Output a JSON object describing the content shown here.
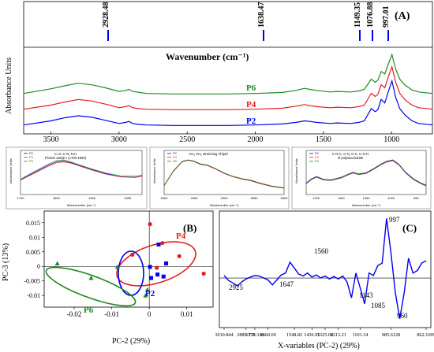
{
  "colors": {
    "blue": "#0000ee",
    "red": "#e51d1d",
    "green": "#1f8a1f",
    "black": "#000000"
  },
  "panel_a": {
    "label": "(A)",
    "ylabel": "Absorbance Units",
    "xlabel": "Wavenumber (cm⁻¹)",
    "xticks": [
      "3500",
      "3000",
      "2500",
      "2000",
      "1500",
      "1000"
    ],
    "peaks": [
      "2928.48",
      "1638.47",
      "1149.35",
      "1076.88",
      "997.01"
    ],
    "series": [
      {
        "name": "P6",
        "color": "#1f8a1f"
      },
      {
        "name": "P4",
        "color": "#e51d1d"
      },
      {
        "name": "P2",
        "color": "#0000ee"
      }
    ]
  },
  "insets": [
    {
      "title": "C=O, C-N, N-H",
      "subtitle": "Protein amide I (1700-1600)",
      "ylabel": "Absorbance Units",
      "xlabel": "Wavenumber (cm⁻¹)",
      "xticks": [
        "1700",
        "1650",
        "1600",
        "1550"
      ],
      "legend": [
        "P2",
        "P4",
        "P6"
      ]
    },
    {
      "title": "CH₂ CH₃ stretching of lipid",
      "ylabel": "Absorbance Units",
      "xlabel": "Wavenumber (cm⁻¹)",
      "xticks": [
        "3000",
        "2950",
        "2900",
        "2850",
        "2800"
      ],
      "legend": [
        "P2",
        "P4",
        "P6"
      ]
    },
    {
      "title": "C-O-C, C-O, C-C, C-O-H",
      "subtitle": "of polysaccharide",
      "ylabel": "Absorbance Units",
      "xlabel": "Wavenumber (cm⁻¹)",
      "xticks": [
        "1150",
        "1100",
        "1050",
        "1000",
        "950"
      ],
      "legend": [
        "P2",
        "P4",
        "P6"
      ]
    }
  ],
  "panel_b": {
    "label": "(B)",
    "xlabel": "PC-2 (29%)",
    "ylabel": "PC-3 (13%)",
    "xticks": [
      "-0.02",
      "-0.01",
      "0",
      "0.01"
    ],
    "yticks": [
      "0.015",
      "0.01",
      "0.005",
      "0",
      "-0.005",
      "-0.01"
    ],
    "groups": [
      "P4",
      "P2",
      "P6"
    ]
  },
  "panel_c": {
    "label": "(C)",
    "xlabel": "X-variables (PC-2) (29%)",
    "xticks": [
      "3010.844",
      "2889.331",
      "1778.346",
      "1660.69",
      "1548.82",
      "1436.95",
      "1325.08",
      "1213.21",
      "1101.34",
      "985.6128",
      "862.1699"
    ],
    "annotations": [
      "2925",
      "1647",
      "1560",
      "1143",
      "1085",
      "997",
      "960"
    ]
  },
  "chart_data": [
    {
      "type": "line",
      "title": "(A)",
      "xlabel": "Wavenumber (cm⁻¹)",
      "ylabel": "Absorbance Units",
      "xlim": [
        3700,
        700
      ],
      "x": [
        3700,
        3500,
        3400,
        3300,
        3200,
        3100,
        3000,
        2950,
        2928,
        2900,
        2850,
        2800,
        2600,
        2400,
        2200,
        2000,
        1800,
        1700,
        1638,
        1600,
        1550,
        1450,
        1400,
        1300,
        1240,
        1200,
        1149,
        1120,
        1100,
        1076,
        1050,
        1020,
        997,
        970,
        940,
        900,
        850,
        800,
        700
      ],
      "series": [
        {
          "name": "P6",
          "values": [
            0.02,
            0.11,
            0.17,
            0.22,
            0.19,
            0.13,
            0.06,
            0.08,
            0.1,
            0.06,
            0.04,
            0.02,
            0.01,
            0.01,
            0.01,
            0.02,
            0.04,
            0.08,
            0.12,
            0.1,
            0.08,
            0.05,
            0.06,
            0.05,
            0.07,
            0.1,
            0.3,
            0.24,
            0.28,
            0.45,
            0.4,
            0.62,
            0.78,
            0.5,
            0.3,
            0.18,
            0.09,
            0.05,
            0.02
          ]
        },
        {
          "name": "P4",
          "values": [
            0.02,
            0.1,
            0.16,
            0.21,
            0.18,
            0.12,
            0.05,
            0.07,
            0.09,
            0.05,
            0.03,
            0.02,
            0.01,
            0.01,
            0.01,
            0.02,
            0.04,
            0.08,
            0.11,
            0.09,
            0.07,
            0.05,
            0.06,
            0.05,
            0.07,
            0.1,
            0.33,
            0.27,
            0.31,
            0.5,
            0.44,
            0.68,
            0.85,
            0.55,
            0.33,
            0.2,
            0.1,
            0.05,
            0.02
          ]
        },
        {
          "name": "P2",
          "values": [
            0.02,
            0.1,
            0.16,
            0.2,
            0.17,
            0.11,
            0.05,
            0.07,
            0.09,
            0.05,
            0.03,
            0.02,
            0.01,
            0.01,
            0.01,
            0.02,
            0.04,
            0.07,
            0.1,
            0.09,
            0.07,
            0.05,
            0.06,
            0.05,
            0.07,
            0.1,
            0.34,
            0.28,
            0.32,
            0.52,
            0.45,
            0.7,
            0.88,
            0.56,
            0.34,
            0.21,
            0.1,
            0.05,
            0.02
          ]
        }
      ]
    },
    {
      "type": "line",
      "title": "C=O, C-N, N-H",
      "xlabel": "Wavenumber (cm⁻¹)",
      "ylabel": "Absorbance Units",
      "xlim": [
        1700,
        1530
      ],
      "x": [
        1700,
        1680,
        1660,
        1650,
        1640,
        1630,
        1620,
        1600,
        1580,
        1560,
        1540,
        1530
      ],
      "series": [
        {
          "name": "P2",
          "values": [
            0.04,
            0.065,
            0.09,
            0.1,
            0.103,
            0.098,
            0.09,
            0.074,
            0.06,
            0.05,
            0.048,
            0.052
          ]
        },
        {
          "name": "P4",
          "values": [
            0.038,
            0.062,
            0.087,
            0.097,
            0.1,
            0.096,
            0.088,
            0.072,
            0.058,
            0.049,
            0.047,
            0.051
          ]
        },
        {
          "name": "P6",
          "values": [
            0.041,
            0.068,
            0.094,
            0.104,
            0.107,
            0.101,
            0.092,
            0.076,
            0.062,
            0.053,
            0.051,
            0.055
          ]
        }
      ]
    },
    {
      "type": "line",
      "title": "CH₂ CH₃ stretching of lipid",
      "xlabel": "Wavenumber (cm⁻¹)",
      "ylabel": "Absorbance Units",
      "xlim": [
        3000,
        2800
      ],
      "x": [
        3000,
        2985,
        2970,
        2960,
        2950,
        2940,
        2928,
        2915,
        2900,
        2885,
        2870,
        2855,
        2840,
        2820,
        2800
      ],
      "series": [
        {
          "name": "P2",
          "values": [
            0.02,
            0.07,
            0.105,
            0.11,
            0.106,
            0.096,
            0.092,
            0.08,
            0.064,
            0.052,
            0.044,
            0.038,
            0.028,
            0.018,
            0.012
          ]
        },
        {
          "name": "P4",
          "values": [
            0.019,
            0.069,
            0.104,
            0.109,
            0.105,
            0.095,
            0.091,
            0.079,
            0.063,
            0.051,
            0.043,
            0.037,
            0.027,
            0.017,
            0.011
          ]
        },
        {
          "name": "P6",
          "values": [
            0.021,
            0.071,
            0.106,
            0.111,
            0.107,
            0.097,
            0.093,
            0.081,
            0.065,
            0.053,
            0.045,
            0.039,
            0.029,
            0.019,
            0.013
          ]
        }
      ]
    },
    {
      "type": "line",
      "title": "C-O-C, C-O, C-C, C-O-H",
      "xlabel": "Wavenumber (cm⁻¹)",
      "ylabel": "Absorbance Units",
      "xlim": [
        1170,
        930
      ],
      "x": [
        1170,
        1160,
        1149,
        1135,
        1120,
        1100,
        1085,
        1076,
        1065,
        1050,
        1035,
        1020,
        1010,
        997,
        985,
        970,
        955,
        940,
        930
      ],
      "series": [
        {
          "name": "P2",
          "values": [
            0.2,
            0.3,
            0.36,
            0.29,
            0.28,
            0.34,
            0.42,
            0.46,
            0.42,
            0.45,
            0.55,
            0.66,
            0.72,
            0.76,
            0.66,
            0.45,
            0.3,
            0.2,
            0.15
          ]
        },
        {
          "name": "P4",
          "values": [
            0.19,
            0.29,
            0.35,
            0.28,
            0.27,
            0.33,
            0.41,
            0.45,
            0.41,
            0.44,
            0.54,
            0.65,
            0.71,
            0.75,
            0.65,
            0.44,
            0.29,
            0.19,
            0.14
          ]
        },
        {
          "name": "P6",
          "values": [
            0.18,
            0.28,
            0.34,
            0.27,
            0.26,
            0.32,
            0.4,
            0.44,
            0.4,
            0.43,
            0.53,
            0.64,
            0.7,
            0.74,
            0.64,
            0.43,
            0.28,
            0.18,
            0.13
          ]
        }
      ]
    },
    {
      "type": "scatter",
      "title": "(B)",
      "xlabel": "PC-2 (29%)",
      "ylabel": "PC-3 (13%)",
      "xlim": [
        -0.028,
        0.017
      ],
      "ylim": [
        -0.014,
        0.019
      ],
      "series": [
        {
          "name": "P4",
          "marker": "circle",
          "points": [
            [
              -0.0045,
              0.004
            ],
            [
              0.0002,
              0.0145
            ],
            [
              0.0035,
              0.008
            ],
            [
              0.0145,
              -0.0025
            ],
            [
              0.008,
              0.0035
            ],
            [
              0.002,
              -0.0005
            ]
          ]
        },
        {
          "name": "P2",
          "marker": "square",
          "points": [
            [
              0.0025,
              0.0075
            ],
            [
              0.0002,
              -0.0002
            ],
            [
              0.0045,
              0.001
            ],
            [
              0.0022,
              -0.0028
            ],
            [
              0.0005,
              -0.004
            ],
            [
              0.0038,
              -0.0035
            ]
          ]
        },
        {
          "name": "P6",
          "marker": "triangle",
          "points": [
            [
              -0.0245,
              0.001
            ],
            [
              -0.0085,
              -0.0002
            ],
            [
              -0.0155,
              -0.004
            ],
            [
              -0.0005,
              -0.008
            ],
            [
              -0.001,
              -0.01
            ]
          ]
        }
      ]
    },
    {
      "type": "line",
      "title": "(C)",
      "xlabel": "X-variables (PC-2) (29%)",
      "xlim": [
        3010.844,
        862.1699
      ],
      "x": [
        3010.844,
        2980,
        2950,
        2925,
        2900,
        2889.331,
        2850,
        1778.346,
        1720,
        1680,
        1660.69,
        1647,
        1620,
        1600,
        1580,
        1560,
        1548.82,
        1530,
        1500,
        1470,
        1436.95,
        1400,
        1370,
        1325.08,
        1280,
        1250,
        1213.21,
        1180,
        1160,
        1143,
        1125,
        1101.34,
        1085,
        1070,
        1050,
        1030,
        1015,
        997,
        985.6128,
        975,
        960,
        945,
        930,
        910,
        890,
        875,
        862.1699
      ],
      "values": [
        0.05,
        -0.05,
        -0.1,
        -0.16,
        -0.08,
        -0.02,
        0.02,
        0.05,
        0.04,
        0.0,
        -0.04,
        -0.14,
        -0.04,
        0.06,
        0.1,
        0.32,
        0.2,
        0.08,
        0.04,
        0.1,
        0.02,
        0.06,
        0.0,
        0.04,
        -0.02,
        0.03,
        -0.02,
        0.04,
        -0.08,
        -0.4,
        0.1,
        -0.2,
        -0.52,
        0.1,
        0.05,
        0.25,
        0.3,
        1.2,
        0.5,
        -0.3,
        -0.82,
        -0.3,
        0.4,
        0.1,
        0.15,
        0.3,
        0.35
      ]
    }
  ]
}
